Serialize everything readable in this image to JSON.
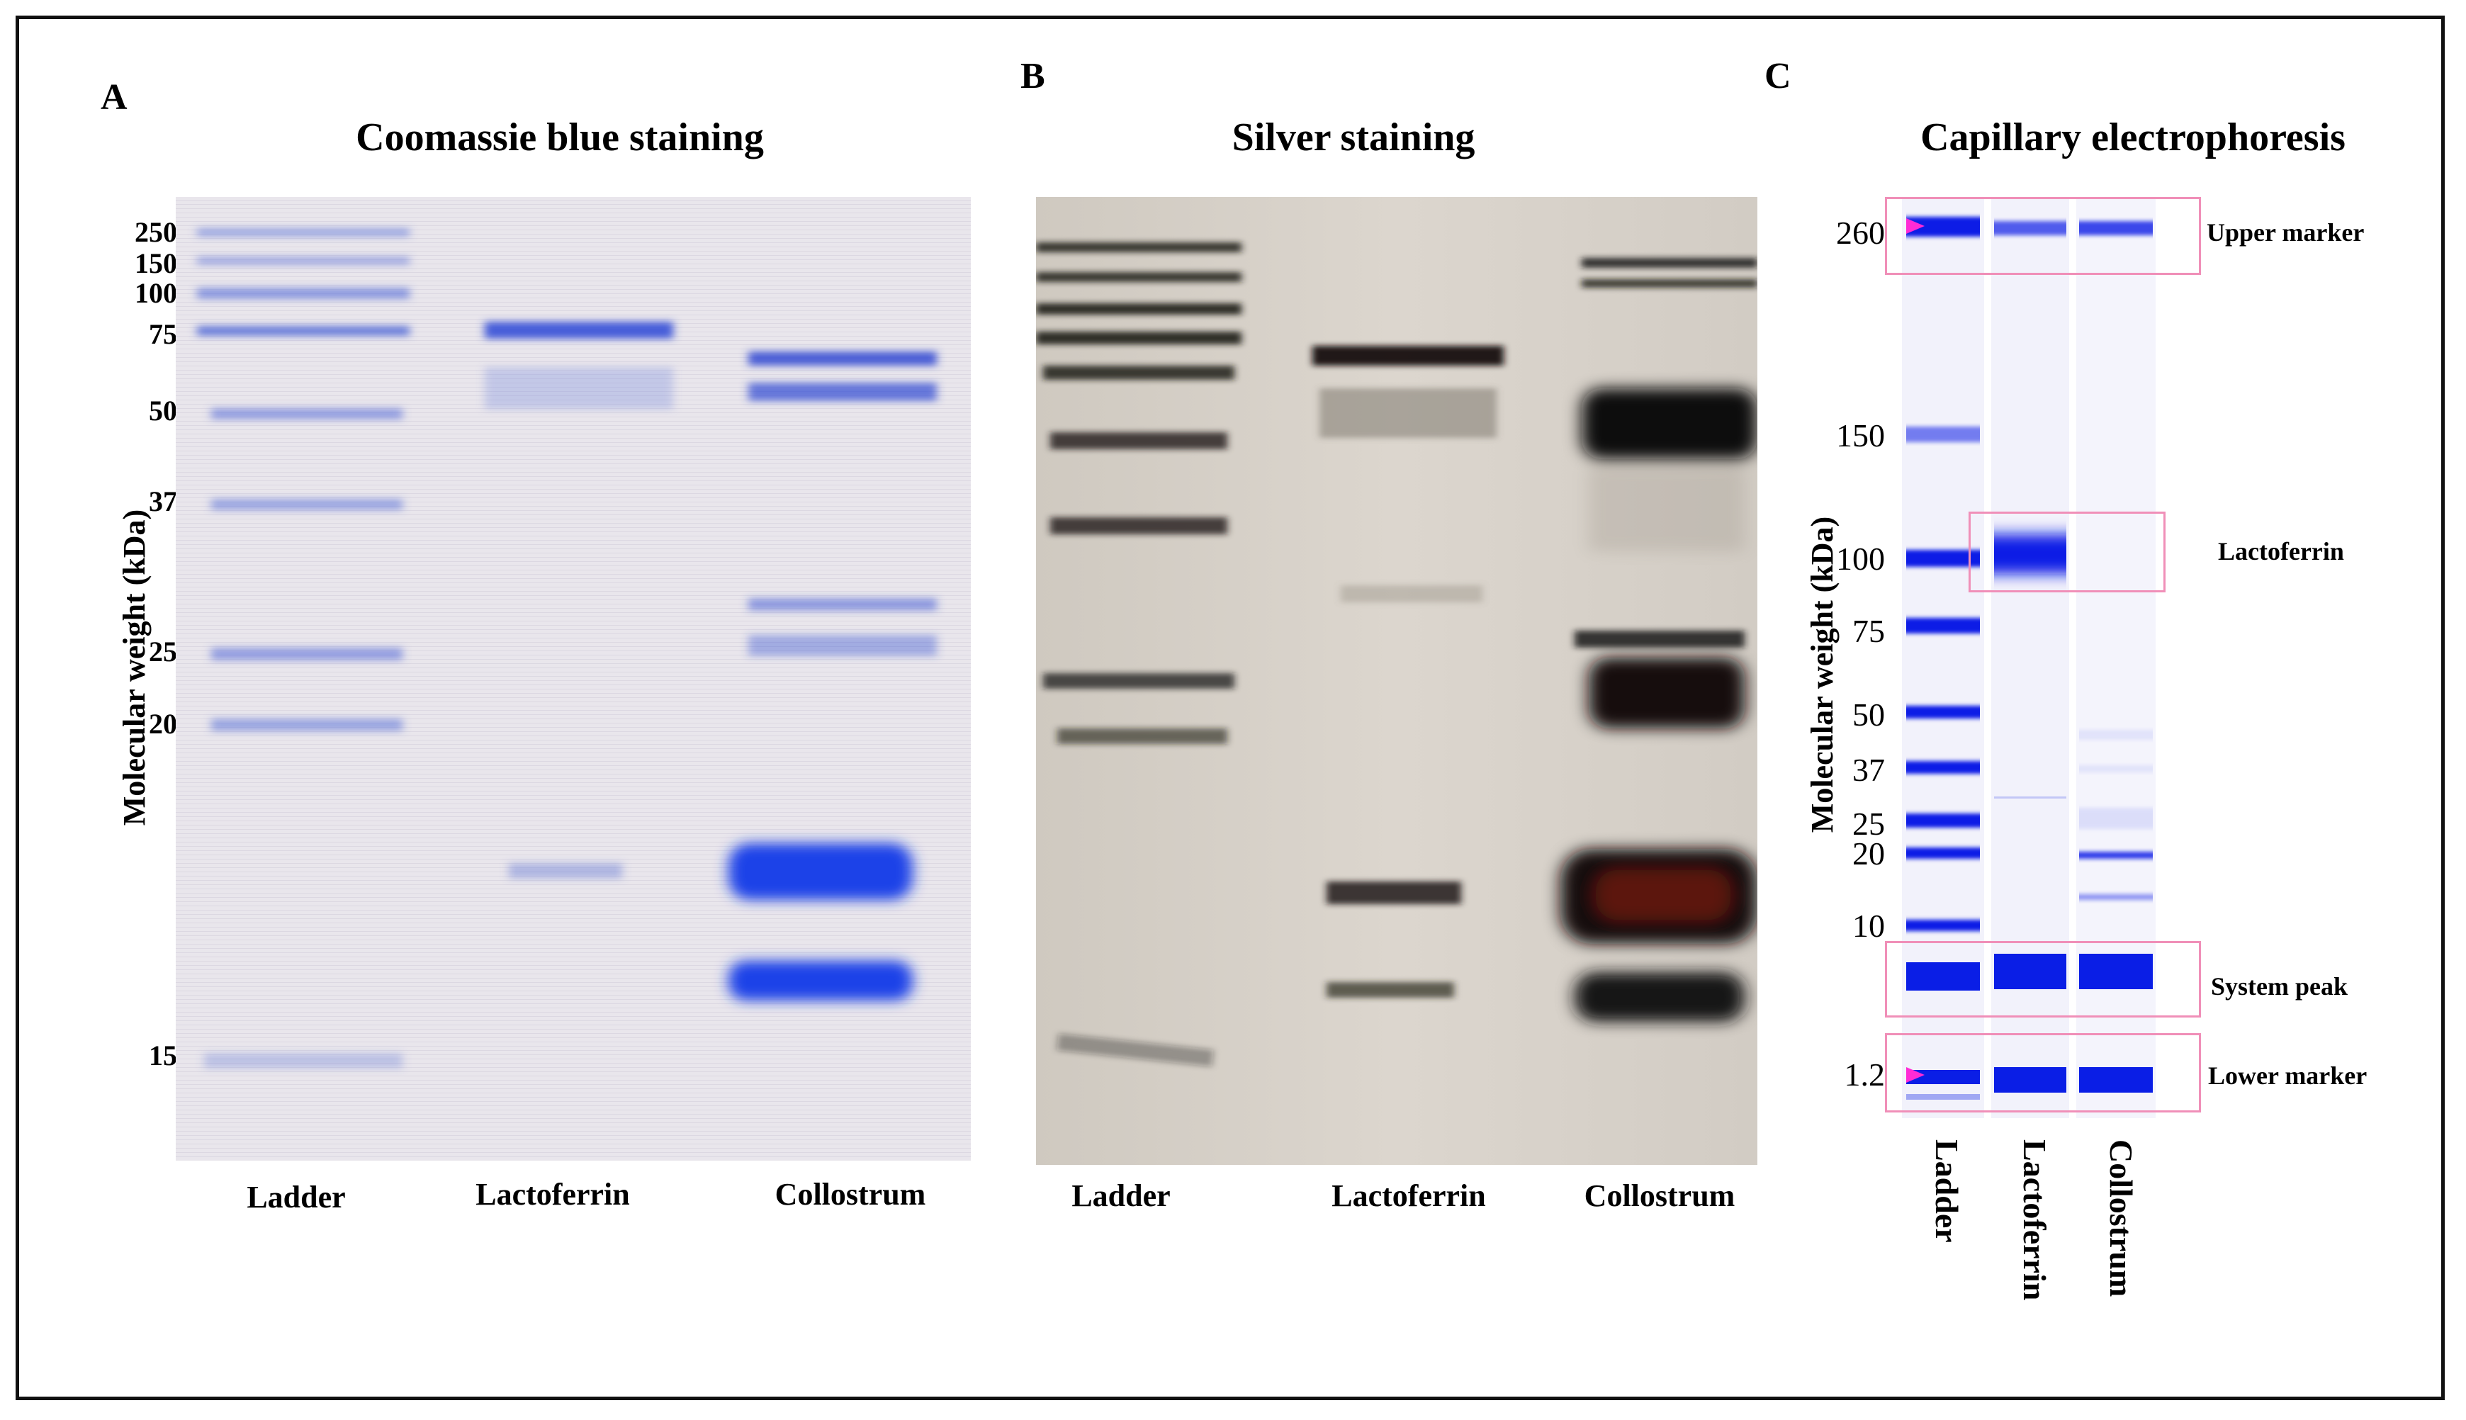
{
  "panels": {
    "A": {
      "letter": "A",
      "title": "Coomassie blue staining",
      "ylabel": "Molecular weight (kDa)",
      "ticks": [
        "250",
        "150",
        "100",
        "75",
        "50",
        "37",
        "25",
        "20",
        "15"
      ],
      "lanes": [
        "Ladder",
        "Lactoferrin",
        "Collostrum"
      ]
    },
    "B": {
      "letter": "B",
      "title": "Silver staining",
      "lanes": [
        "Ladder",
        "Lactoferrin",
        "Collostrum"
      ]
    },
    "C": {
      "letter": "C",
      "title": "Capillary electrophoresis",
      "ylabel": "Molecular weight (kDa)",
      "ticks": [
        "260",
        "150",
        "100",
        "75",
        "50",
        "37",
        "25",
        "20",
        "10",
        "1.2"
      ],
      "lanes": [
        "Ladder",
        "Lactoferrin",
        "Collostrum"
      ],
      "callouts": [
        "Upper marker",
        "Lactoferrin",
        "System peak",
        "Lower marker"
      ]
    }
  },
  "colors": {
    "coomassie_bg": "#e9e6ec",
    "coomassie_band": "#3c54d8",
    "silver_bg": "#d8d2ca",
    "silver_band": "#1c1a16",
    "silver_red": "#6a1a10",
    "ce_band": "#0a1ee6",
    "ce_marker": "#ff2bd6",
    "callout_box": "#f08fb8"
  }
}
